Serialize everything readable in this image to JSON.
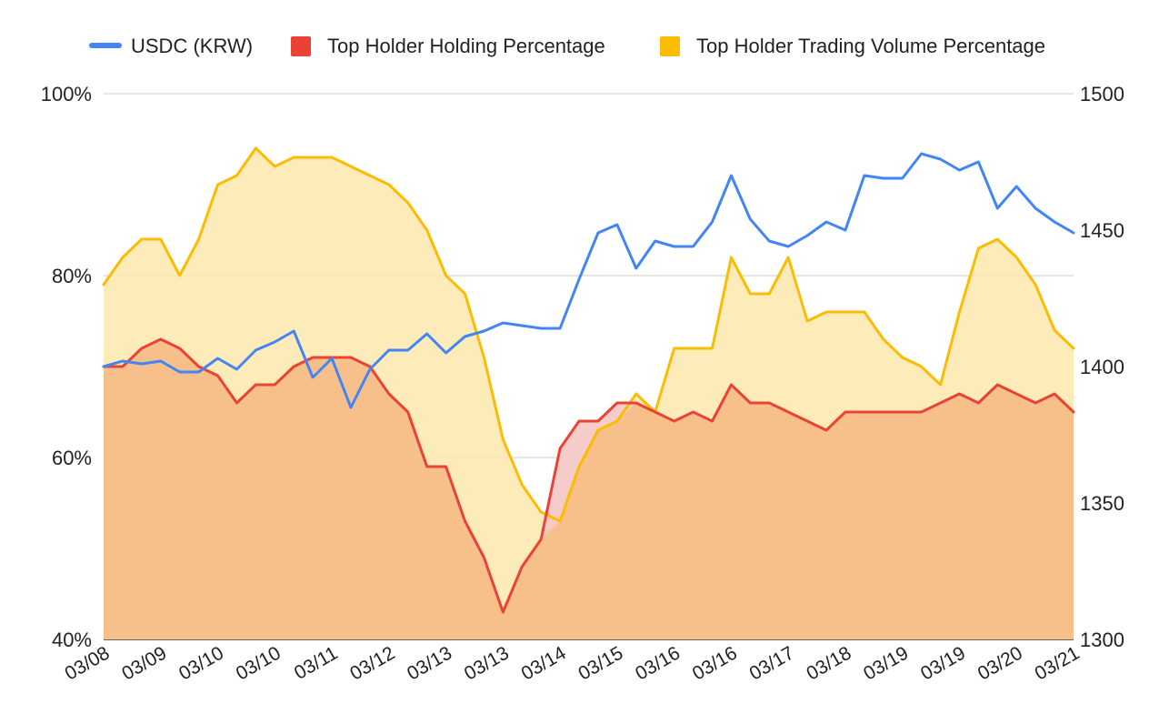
{
  "chart_data": {
    "type": "line",
    "title": "",
    "xlabel": "",
    "ylabel": "",
    "x_tick_labels": [
      "03/08",
      "03/09",
      "03/10",
      "03/10",
      "03/11",
      "03/12",
      "03/13",
      "03/13",
      "03/14",
      "03/15",
      "03/16",
      "03/16",
      "03/17",
      "03/18",
      "03/19",
      "03/19",
      "03/20",
      "03/21"
    ],
    "y_left": {
      "ticks": [
        "40%",
        "60%",
        "80%",
        "100%"
      ],
      "range": [
        40,
        100
      ]
    },
    "y_right": {
      "ticks": [
        "1300",
        "1350",
        "1400",
        "1450",
        "1500"
      ],
      "range": [
        1300,
        1500
      ]
    },
    "legend_position": "top",
    "grid": true,
    "series": [
      {
        "name": "USDC (KRW)",
        "axis": "right",
        "style": "line",
        "color": "#4285f4",
        "values": [
          1400,
          1402,
          1401,
          1402,
          1398,
          1398,
          1403,
          1399,
          1406,
          1409,
          1413,
          1396,
          1403,
          1385,
          1399,
          1406,
          1406,
          1412,
          1405,
          1411,
          1413,
          1416,
          1415,
          1414,
          1414,
          1432,
          1449,
          1452,
          1436,
          1446,
          1444,
          1444,
          1453,
          1470,
          1454,
          1446,
          1444,
          1448,
          1453,
          1450,
          1470,
          1469,
          1469,
          1478,
          1476,
          1472,
          1475,
          1458,
          1466,
          1458,
          1453,
          1449
        ]
      },
      {
        "name": "Top Holder Holding Percentage",
        "axis": "left",
        "style": "area",
        "color": "#ea4335",
        "fill": "#f4c7c3",
        "values": [
          70,
          70,
          72,
          73,
          72,
          70,
          69,
          66,
          68,
          68,
          70,
          71,
          71,
          71,
          70,
          67,
          65,
          59,
          59,
          53,
          49,
          43,
          48,
          51,
          61,
          64,
          64,
          66,
          66,
          65,
          64,
          65,
          64,
          68,
          66,
          66,
          65,
          64,
          63,
          65,
          65,
          65,
          65,
          65,
          66,
          67,
          66,
          68,
          67,
          66,
          67,
          65
        ]
      },
      {
        "name": "Top Holder Trading Volume Percentage",
        "axis": "left",
        "style": "area",
        "color": "#fbbc04",
        "fill": "#fde9b3",
        "values": [
          79,
          82,
          84,
          84,
          80,
          84,
          90,
          91,
          94,
          92,
          93,
          93,
          93,
          92,
          91,
          90,
          88,
          85,
          80,
          78,
          71,
          62,
          57,
          54,
          53,
          59,
          63,
          64,
          67,
          65,
          72,
          72,
          72,
          82,
          78,
          78,
          82,
          75,
          76,
          76,
          76,
          73,
          71,
          70,
          68,
          76,
          83,
          84,
          82,
          79,
          74,
          72
        ]
      }
    ]
  }
}
